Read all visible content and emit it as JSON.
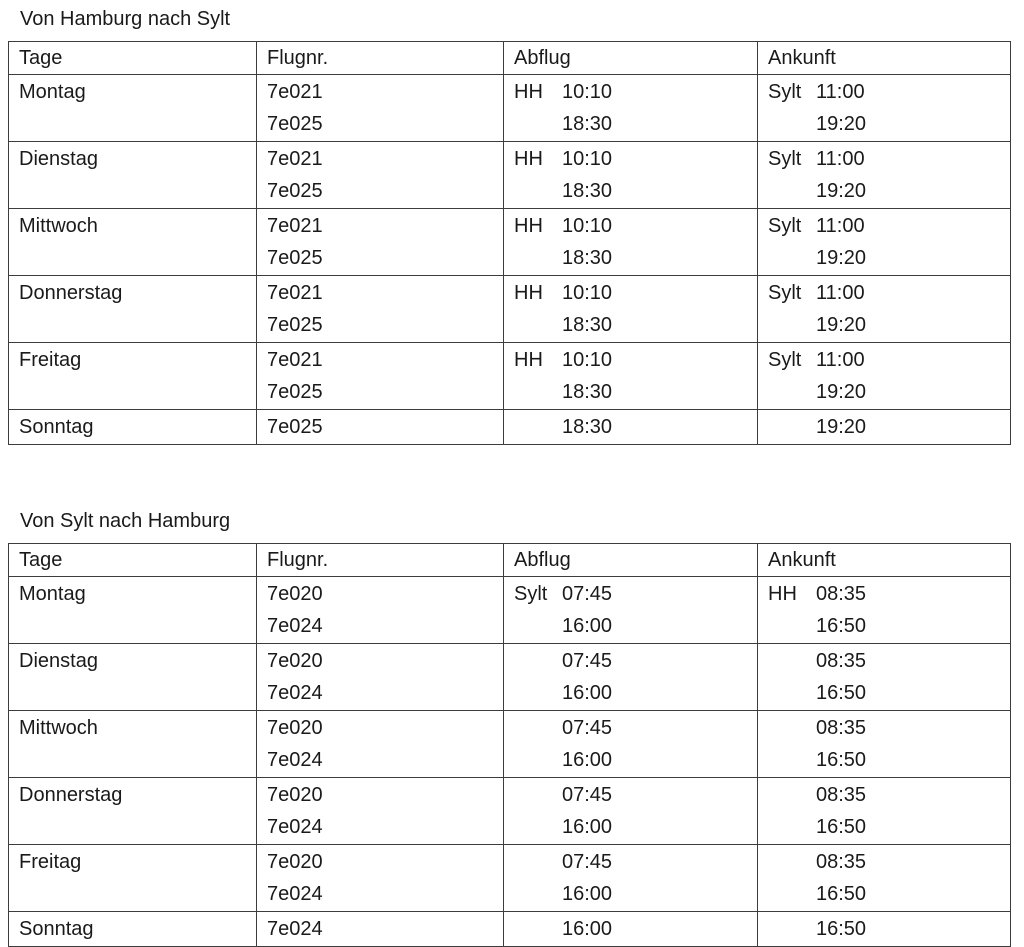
{
  "page": {
    "background": "#ffffff",
    "text_color": "#1a1a1a",
    "border_color": "#3d3d3d"
  },
  "tables": [
    {
      "title": "Von Hamburg nach Sylt",
      "headers": [
        "Tage",
        "Flugnr.",
        "Abflug",
        "Ankunft"
      ],
      "rows": [
        {
          "day": "Montag",
          "flights": [
            "7e021",
            "7e025"
          ],
          "departures": [
            {
              "place": "HH",
              "time": "10:10"
            },
            {
              "place": "",
              "time": "18:30"
            }
          ],
          "arrivals": [
            {
              "place": "Sylt",
              "time": "11:00"
            },
            {
              "place": "",
              "time": "19:20"
            }
          ]
        },
        {
          "day": "Dienstag",
          "flights": [
            "7e021",
            "7e025"
          ],
          "departures": [
            {
              "place": "HH",
              "time": "10:10"
            },
            {
              "place": "",
              "time": "18:30"
            }
          ],
          "arrivals": [
            {
              "place": "Sylt",
              "time": "11:00"
            },
            {
              "place": "",
              "time": "19:20"
            }
          ]
        },
        {
          "day": "Mittwoch",
          "flights": [
            "7e021",
            "7e025"
          ],
          "departures": [
            {
              "place": "HH",
              "time": "10:10"
            },
            {
              "place": "",
              "time": "18:30"
            }
          ],
          "arrivals": [
            {
              "place": "Sylt",
              "time": "11:00"
            },
            {
              "place": "",
              "time": "19:20"
            }
          ]
        },
        {
          "day": "Donnerstag",
          "flights": [
            "7e021",
            "7e025"
          ],
          "departures": [
            {
              "place": "HH",
              "time": "10:10"
            },
            {
              "place": "",
              "time": "18:30"
            }
          ],
          "arrivals": [
            {
              "place": "Sylt",
              "time": "11:00"
            },
            {
              "place": "",
              "time": "19:20"
            }
          ]
        },
        {
          "day": "Freitag",
          "flights": [
            "7e021",
            "7e025"
          ],
          "departures": [
            {
              "place": "HH",
              "time": "10:10"
            },
            {
              "place": "",
              "time": "18:30"
            }
          ],
          "arrivals": [
            {
              "place": "Sylt",
              "time": "11:00"
            },
            {
              "place": "",
              "time": "19:20"
            }
          ]
        },
        {
          "day": "Sonntag",
          "flights": [
            "7e025"
          ],
          "departures": [
            {
              "place": "",
              "time": "18:30"
            }
          ],
          "arrivals": [
            {
              "place": "",
              "time": "19:20"
            }
          ]
        }
      ]
    },
    {
      "title": "Von Sylt nach Hamburg",
      "headers": [
        "Tage",
        "Flugnr.",
        "Abflug",
        "Ankunft"
      ],
      "rows": [
        {
          "day": "Montag",
          "flights": [
            "7e020",
            "7e024"
          ],
          "departures": [
            {
              "place": "Sylt",
              "time": "07:45"
            },
            {
              "place": "",
              "time": "16:00"
            }
          ],
          "arrivals": [
            {
              "place": "HH",
              "time": "08:35"
            },
            {
              "place": "",
              "time": "16:50"
            }
          ]
        },
        {
          "day": "Dienstag",
          "flights": [
            "7e020",
            "7e024"
          ],
          "departures": [
            {
              "place": "",
              "time": "07:45"
            },
            {
              "place": "",
              "time": "16:00"
            }
          ],
          "arrivals": [
            {
              "place": "",
              "time": "08:35"
            },
            {
              "place": "",
              "time": "16:50"
            }
          ]
        },
        {
          "day": "Mittwoch",
          "flights": [
            "7e020",
            "7e024"
          ],
          "departures": [
            {
              "place": "",
              "time": "07:45"
            },
            {
              "place": "",
              "time": "16:00"
            }
          ],
          "arrivals": [
            {
              "place": "",
              "time": "08:35"
            },
            {
              "place": "",
              "time": "16:50"
            }
          ]
        },
        {
          "day": "Donnerstag",
          "flights": [
            "7e020",
            "7e024"
          ],
          "departures": [
            {
              "place": "",
              "time": "07:45"
            },
            {
              "place": "",
              "time": "16:00"
            }
          ],
          "arrivals": [
            {
              "place": "",
              "time": "08:35"
            },
            {
              "place": "",
              "time": "16:50"
            }
          ]
        },
        {
          "day": "Freitag",
          "flights": [
            "7e020",
            "7e024"
          ],
          "departures": [
            {
              "place": "",
              "time": "07:45"
            },
            {
              "place": "",
              "time": "16:00"
            }
          ],
          "arrivals": [
            {
              "place": "",
              "time": "08:35"
            },
            {
              "place": "",
              "time": "16:50"
            }
          ]
        },
        {
          "day": "Sonntag",
          "flights": [
            "7e024"
          ],
          "departures": [
            {
              "place": "",
              "time": "16:00"
            }
          ],
          "arrivals": [
            {
              "place": "",
              "time": "16:50"
            }
          ]
        }
      ]
    }
  ]
}
